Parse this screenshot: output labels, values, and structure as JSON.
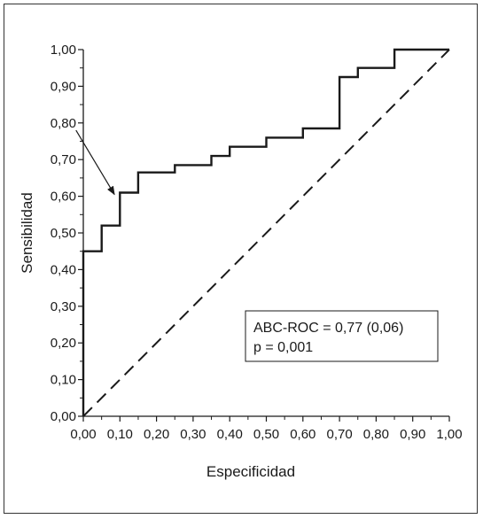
{
  "chart_data": {
    "type": "line",
    "title": "",
    "xlabel": "Especificidad",
    "ylabel": "Sensibilidad",
    "xlim": [
      0,
      1
    ],
    "ylim": [
      0,
      1
    ],
    "x_ticks": [
      "0,00",
      "0,10",
      "0,20",
      "0,30",
      "0,40",
      "0,50",
      "0,60",
      "0,70",
      "0,80",
      "0,90",
      "1,00"
    ],
    "y_ticks": [
      "0,00",
      "0,10",
      "0,20",
      "0,30",
      "0,40",
      "0,50",
      "0,60",
      "0,70",
      "0,80",
      "0,90",
      "1,00"
    ],
    "grid": false,
    "series": [
      {
        "style": "solid-step",
        "x": [
          0.0,
          0.0,
          0.05,
          0.05,
          0.1,
          0.1,
          0.15,
          0.15,
          0.25,
          0.25,
          0.35,
          0.35,
          0.4,
          0.4,
          0.5,
          0.5,
          0.6,
          0.6,
          0.7,
          0.7,
          0.75,
          0.75,
          0.85,
          0.85,
          1.0
        ],
        "y": [
          0.0,
          0.45,
          0.45,
          0.52,
          0.52,
          0.61,
          0.61,
          0.665,
          0.665,
          0.685,
          0.685,
          0.71,
          0.71,
          0.735,
          0.735,
          0.76,
          0.76,
          0.785,
          0.785,
          0.925,
          0.925,
          0.95,
          0.95,
          1.0,
          1.0
        ]
      },
      {
        "style": "dashed-diagonal",
        "x": [
          0.0,
          1.0
        ],
        "y": [
          0.0,
          1.0
        ]
      }
    ],
    "annotations": {
      "box_lines": [
        "ABC-ROC = 0,77 (0,06)",
        "p = 0,001"
      ],
      "arrow": {
        "from": [
          -0.02,
          0.78
        ],
        "to": [
          0.085,
          0.605
        ]
      }
    }
  }
}
